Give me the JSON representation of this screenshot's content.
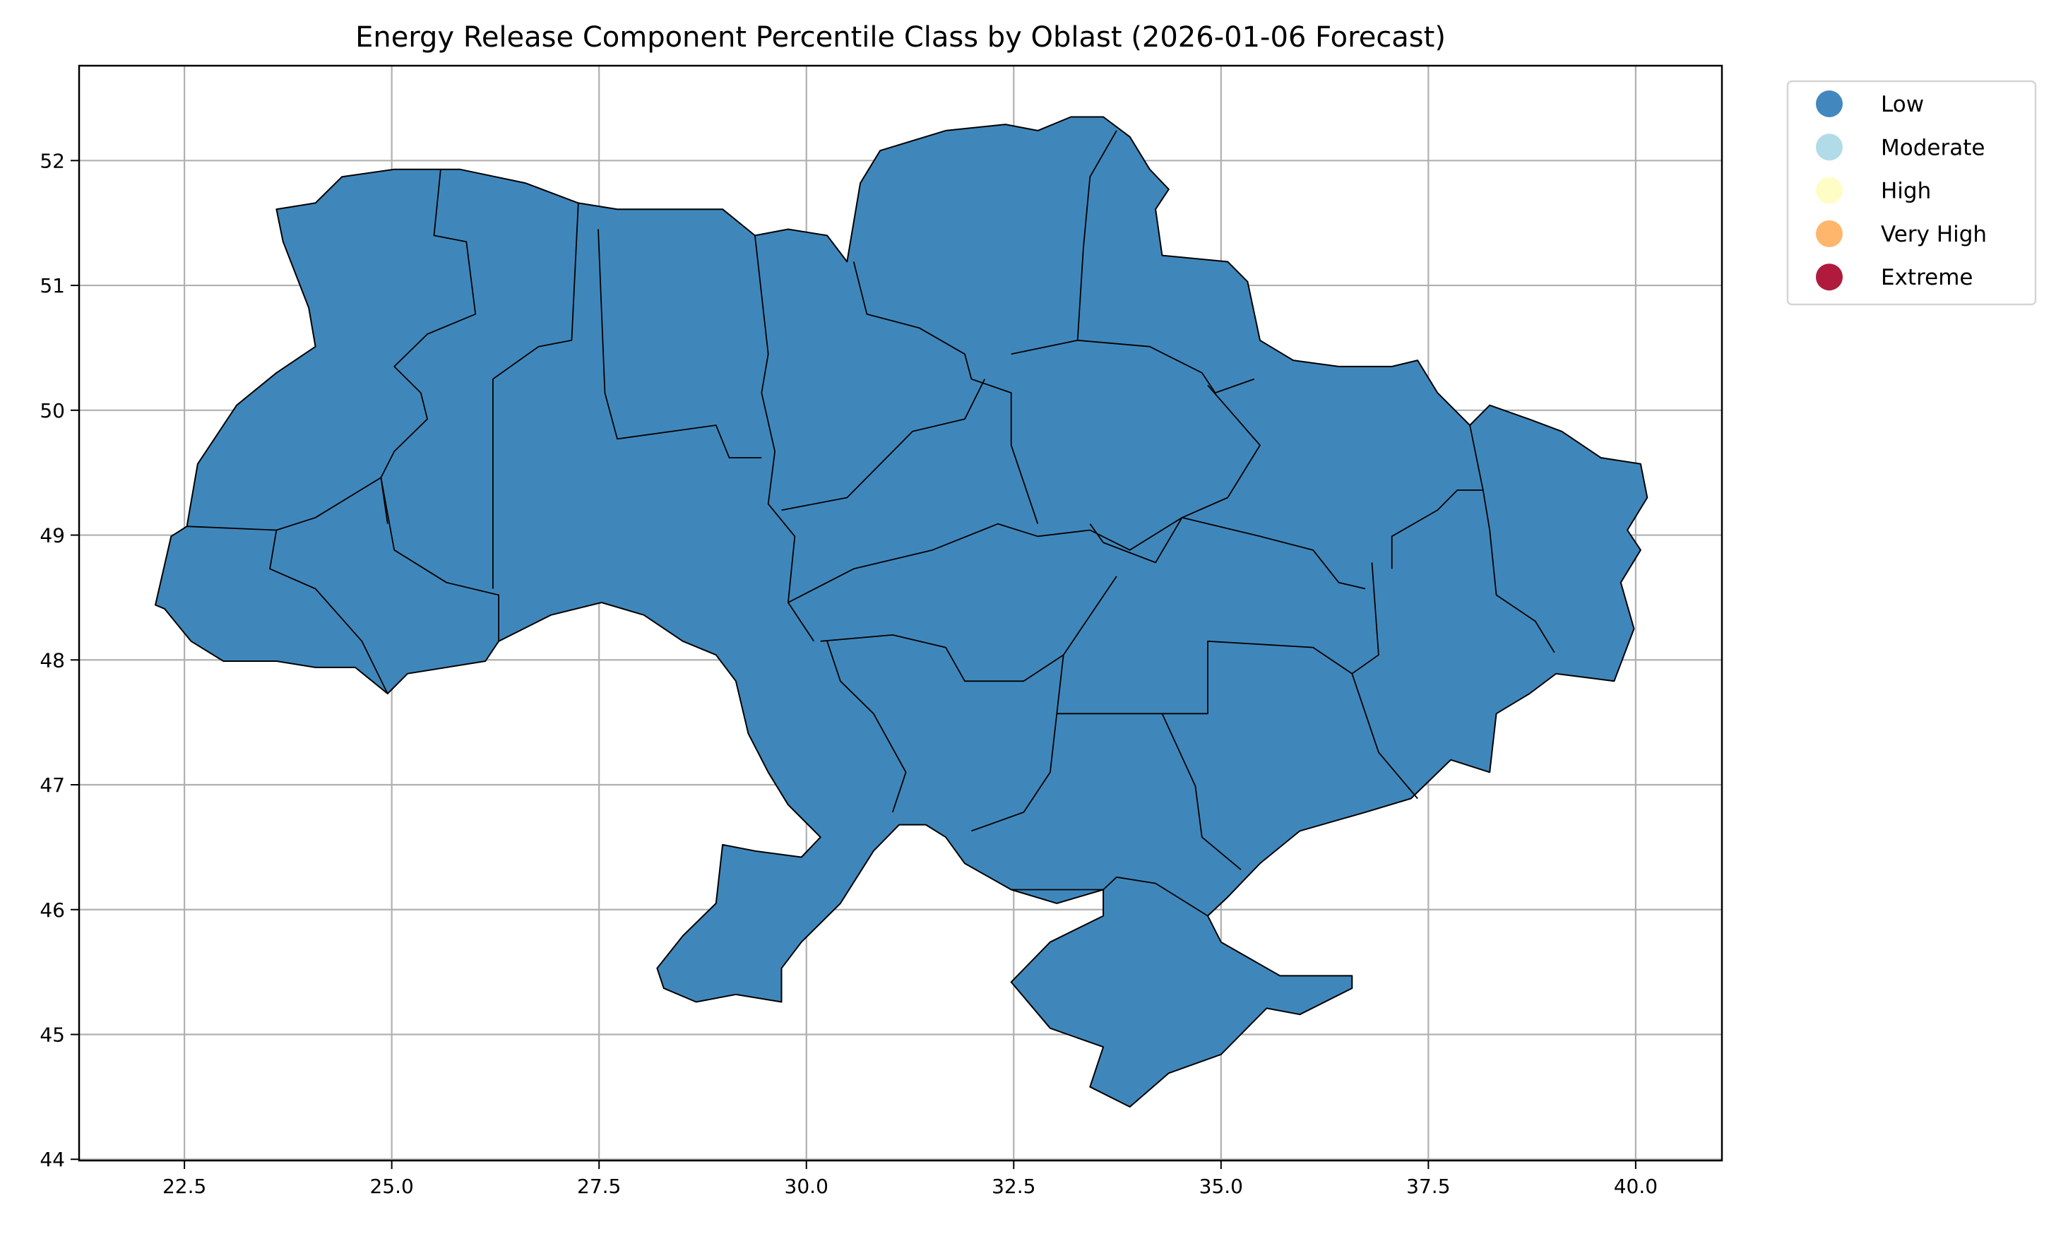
{
  "chart_data": {
    "type": "choropleth",
    "title": "Energy Release Component Percentile Class by Oblast (2026-01-06 Forecast)",
    "xlabel": "",
    "ylabel": "",
    "xlim": [
      21.23,
      41.04
    ],
    "ylim": [
      43.99,
      52.76
    ],
    "x_ticks": [
      "22.5",
      "25.0",
      "27.5",
      "30.0",
      "32.5",
      "35.0",
      "37.5",
      "40.0"
    ],
    "y_ticks": [
      "44",
      "45",
      "46",
      "47",
      "48",
      "49",
      "50",
      "51",
      "52"
    ],
    "grid": true,
    "legend_position": "outside-top-right",
    "legend": [
      {
        "label": "Low",
        "color": "#4288be"
      },
      {
        "label": "Moderate",
        "color": "#b2dbe8"
      },
      {
        "label": "High",
        "color": "#fffdc6"
      },
      {
        "label": "Very High",
        "color": "#fdb66c"
      },
      {
        "label": "Extreme",
        "color": "#b01a3c"
      }
    ],
    "all_regions_class": "Low",
    "fill_color": "#3f87bb",
    "outline": [
      [
        22.15,
        48.44
      ],
      [
        22.34,
        48.99
      ],
      [
        22.53,
        49.07
      ],
      [
        22.66,
        49.57
      ],
      [
        23.13,
        50.04
      ],
      [
        23.61,
        50.3
      ],
      [
        24.08,
        50.51
      ],
      [
        24.0,
        50.82
      ],
      [
        23.69,
        51.35
      ],
      [
        23.61,
        51.61
      ],
      [
        24.08,
        51.66
      ],
      [
        24.4,
        51.87
      ],
      [
        25.03,
        51.93
      ],
      [
        25.82,
        51.93
      ],
      [
        26.61,
        51.82
      ],
      [
        27.25,
        51.66
      ],
      [
        27.72,
        51.61
      ],
      [
        28.04,
        51.61
      ],
      [
        28.35,
        51.61
      ],
      [
        28.99,
        51.61
      ],
      [
        29.38,
        51.4
      ],
      [
        29.78,
        51.45
      ],
      [
        30.25,
        51.4
      ],
      [
        30.49,
        51.19
      ],
      [
        30.65,
        51.82
      ],
      [
        30.89,
        52.08
      ],
      [
        31.68,
        52.24
      ],
      [
        32.4,
        52.29
      ],
      [
        32.79,
        52.24
      ],
      [
        33.19,
        52.35
      ],
      [
        33.58,
        52.35
      ],
      [
        33.9,
        52.19
      ],
      [
        34.14,
        51.93
      ],
      [
        34.37,
        51.77
      ],
      [
        34.21,
        51.61
      ],
      [
        34.29,
        51.24
      ],
      [
        35.08,
        51.19
      ],
      [
        35.32,
        51.03
      ],
      [
        35.47,
        50.56
      ],
      [
        35.87,
        50.4
      ],
      [
        36.42,
        50.35
      ],
      [
        37.06,
        50.35
      ],
      [
        37.37,
        50.4
      ],
      [
        37.61,
        50.14
      ],
      [
        38.0,
        49.88
      ],
      [
        38.24,
        50.04
      ],
      [
        38.71,
        49.93
      ],
      [
        39.11,
        49.83
      ],
      [
        39.58,
        49.62
      ],
      [
        40.06,
        49.57
      ],
      [
        40.14,
        49.3
      ],
      [
        39.9,
        49.04
      ],
      [
        40.06,
        48.88
      ],
      [
        39.82,
        48.62
      ],
      [
        39.98,
        48.25
      ],
      [
        39.74,
        47.83
      ],
      [
        39.04,
        47.89
      ],
      [
        38.72,
        47.73
      ],
      [
        38.32,
        47.57
      ],
      [
        38.24,
        47.1
      ],
      [
        37.77,
        47.2
      ],
      [
        37.29,
        46.89
      ],
      [
        36.74,
        46.78
      ],
      [
        35.95,
        46.63
      ],
      [
        35.47,
        46.37
      ],
      [
        35.08,
        46.1
      ],
      [
        34.84,
        45.95
      ],
      [
        35.0,
        45.74
      ],
      [
        35.71,
        45.47
      ],
      [
        36.58,
        45.47
      ],
      [
        36.58,
        45.37
      ],
      [
        35.95,
        45.16
      ],
      [
        35.55,
        45.21
      ],
      [
        35.0,
        44.84
      ],
      [
        34.37,
        44.69
      ],
      [
        33.9,
        44.42
      ],
      [
        33.42,
        44.58
      ],
      [
        33.58,
        44.9
      ],
      [
        32.94,
        45.05
      ],
      [
        32.47,
        45.42
      ],
      [
        32.94,
        45.74
      ],
      [
        33.58,
        45.95
      ],
      [
        33.58,
        46.16
      ],
      [
        33.02,
        46.05
      ],
      [
        32.47,
        46.16
      ],
      [
        31.91,
        46.37
      ],
      [
        31.68,
        46.58
      ],
      [
        31.44,
        46.68
      ],
      [
        31.12,
        46.68
      ],
      [
        30.81,
        46.47
      ],
      [
        30.41,
        46.05
      ],
      [
        29.94,
        45.74
      ],
      [
        29.7,
        45.53
      ],
      [
        29.7,
        45.26
      ],
      [
        29.15,
        45.32
      ],
      [
        28.67,
        45.26
      ],
      [
        28.28,
        45.37
      ],
      [
        28.2,
        45.53
      ],
      [
        28.51,
        45.79
      ],
      [
        28.91,
        46.05
      ],
      [
        28.99,
        46.52
      ],
      [
        29.38,
        46.47
      ],
      [
        29.94,
        46.42
      ],
      [
        30.17,
        46.58
      ],
      [
        29.78,
        46.84
      ],
      [
        29.54,
        47.1
      ],
      [
        29.3,
        47.41
      ],
      [
        29.15,
        47.83
      ],
      [
        28.91,
        48.04
      ],
      [
        28.51,
        48.15
      ],
      [
        28.04,
        48.36
      ],
      [
        27.53,
        48.46
      ],
      [
        26.92,
        48.36
      ],
      [
        26.29,
        48.15
      ],
      [
        26.13,
        47.99
      ],
      [
        25.19,
        47.89
      ],
      [
        24.95,
        47.73
      ],
      [
        24.56,
        47.94
      ],
      [
        24.08,
        47.94
      ],
      [
        23.61,
        47.99
      ],
      [
        22.97,
        47.99
      ],
      [
        22.58,
        48.15
      ],
      [
        22.26,
        48.41
      ]
    ],
    "internal_borders": [
      [
        [
          25.59,
          51.93
        ],
        [
          25.51,
          51.4
        ],
        [
          25.9,
          51.35
        ],
        [
          26.01,
          50.77
        ],
        [
          25.43,
          50.61
        ],
        [
          25.03,
          50.35
        ],
        [
          25.35,
          50.14
        ],
        [
          25.43,
          49.93
        ],
        [
          25.03,
          49.67
        ],
        [
          24.87,
          49.46
        ],
        [
          24.95,
          49.09
        ]
      ],
      [
        [
          27.25,
          51.66
        ],
        [
          27.17,
          50.56
        ],
        [
          26.77,
          50.51
        ],
        [
          26.22,
          50.25
        ],
        [
          26.22,
          48.57
        ]
      ],
      [
        [
          27.49,
          51.45
        ],
        [
          27.57,
          50.14
        ],
        [
          27.72,
          49.77
        ],
        [
          28.91,
          49.88
        ],
        [
          29.07,
          49.62
        ],
        [
          29.46,
          49.62
        ]
      ],
      [
        [
          29.38,
          51.4
        ],
        [
          29.54,
          50.45
        ],
        [
          29.46,
          50.14
        ],
        [
          29.62,
          49.67
        ],
        [
          29.54,
          49.25
        ],
        [
          29.86,
          48.99
        ],
        [
          29.78,
          48.46
        ],
        [
          30.09,
          48.15
        ]
      ],
      [
        [
          30.57,
          51.19
        ],
        [
          30.73,
          50.77
        ],
        [
          31.36,
          50.66
        ],
        [
          31.91,
          50.45
        ],
        [
          31.99,
          50.25
        ],
        [
          32.47,
          50.14
        ],
        [
          32.47,
          49.72
        ],
        [
          32.79,
          49.09
        ]
      ],
      [
        [
          33.74,
          52.24
        ],
        [
          33.42,
          51.87
        ],
        [
          33.34,
          51.3
        ],
        [
          33.27,
          50.56
        ],
        [
          32.47,
          50.45
        ]
      ],
      [
        [
          33.27,
          50.56
        ],
        [
          34.14,
          50.51
        ],
        [
          34.77,
          50.3
        ],
        [
          34.93,
          50.14
        ],
        [
          35.4,
          50.25
        ]
      ],
      [
        [
          34.84,
          50.2
        ],
        [
          35.47,
          49.72
        ],
        [
          35.08,
          49.3
        ],
        [
          34.53,
          49.14
        ],
        [
          34.21,
          48.78
        ],
        [
          33.58,
          48.94
        ],
        [
          33.42,
          49.09
        ]
      ],
      [
        [
          29.7,
          49.2
        ],
        [
          30.49,
          49.3
        ],
        [
          31.28,
          49.83
        ],
        [
          31.91,
          49.93
        ],
        [
          32.15,
          50.25
        ]
      ],
      [
        [
          29.78,
          48.46
        ],
        [
          30.57,
          48.73
        ],
        [
          31.52,
          48.88
        ],
        [
          32.31,
          49.09
        ],
        [
          32.79,
          48.99
        ],
        [
          33.42,
          49.04
        ],
        [
          33.9,
          48.88
        ],
        [
          34.53,
          49.14
        ],
        [
          35.47,
          48.99
        ],
        [
          36.11,
          48.88
        ],
        [
          36.42,
          48.62
        ],
        [
          36.74,
          48.57
        ]
      ],
      [
        [
          30.17,
          48.15
        ],
        [
          31.04,
          48.2
        ],
        [
          31.68,
          48.1
        ],
        [
          31.91,
          47.83
        ],
        [
          32.62,
          47.83
        ],
        [
          33.1,
          48.04
        ],
        [
          33.74,
          48.67
        ]
      ],
      [
        [
          30.25,
          48.15
        ],
        [
          30.41,
          47.83
        ],
        [
          30.81,
          47.57
        ],
        [
          31.2,
          47.1
        ],
        [
          31.04,
          46.78
        ]
      ],
      [
        [
          33.1,
          48.04
        ],
        [
          33.02,
          47.57
        ],
        [
          32.94,
          47.1
        ],
        [
          32.62,
          46.78
        ],
        [
          31.99,
          46.63
        ]
      ],
      [
        [
          33.02,
          47.57
        ],
        [
          34.14,
          47.57
        ],
        [
          34.84,
          47.57
        ],
        [
          34.84,
          48.15
        ],
        [
          36.11,
          48.1
        ],
        [
          36.58,
          47.89
        ],
        [
          36.9,
          48.04
        ],
        [
          36.82,
          48.78
        ]
      ],
      [
        [
          34.29,
          47.57
        ],
        [
          34.69,
          46.99
        ],
        [
          34.77,
          46.58
        ],
        [
          35.24,
          46.32
        ]
      ],
      [
        [
          36.58,
          47.89
        ],
        [
          36.9,
          47.26
        ],
        [
          37.37,
          46.89
        ]
      ],
      [
        [
          38.0,
          49.88
        ],
        [
          38.16,
          49.36
        ],
        [
          37.85,
          49.36
        ],
        [
          37.61,
          49.2
        ],
        [
          37.06,
          48.99
        ],
        [
          37.06,
          48.73
        ]
      ],
      [
        [
          38.16,
          49.36
        ],
        [
          38.24,
          49.04
        ],
        [
          38.32,
          48.52
        ],
        [
          38.79,
          48.31
        ],
        [
          39.02,
          48.06
        ]
      ],
      [
        [
          22.53,
          49.07
        ],
        [
          23.61,
          49.04
        ],
        [
          24.08,
          49.14
        ],
        [
          24.87,
          49.46
        ]
      ],
      [
        [
          23.61,
          49.04
        ],
        [
          23.53,
          48.73
        ],
        [
          24.08,
          48.57
        ],
        [
          24.64,
          48.15
        ],
        [
          24.95,
          47.73
        ]
      ],
      [
        [
          24.87,
          49.46
        ],
        [
          25.03,
          48.88
        ],
        [
          25.66,
          48.62
        ],
        [
          26.29,
          48.52
        ],
        [
          26.29,
          48.15
        ]
      ],
      [
        [
          32.47,
          46.16
        ],
        [
          33.58,
          46.16
        ],
        [
          33.74,
          46.26
        ],
        [
          34.21,
          46.21
        ],
        [
          34.84,
          45.95
        ]
      ]
    ]
  }
}
